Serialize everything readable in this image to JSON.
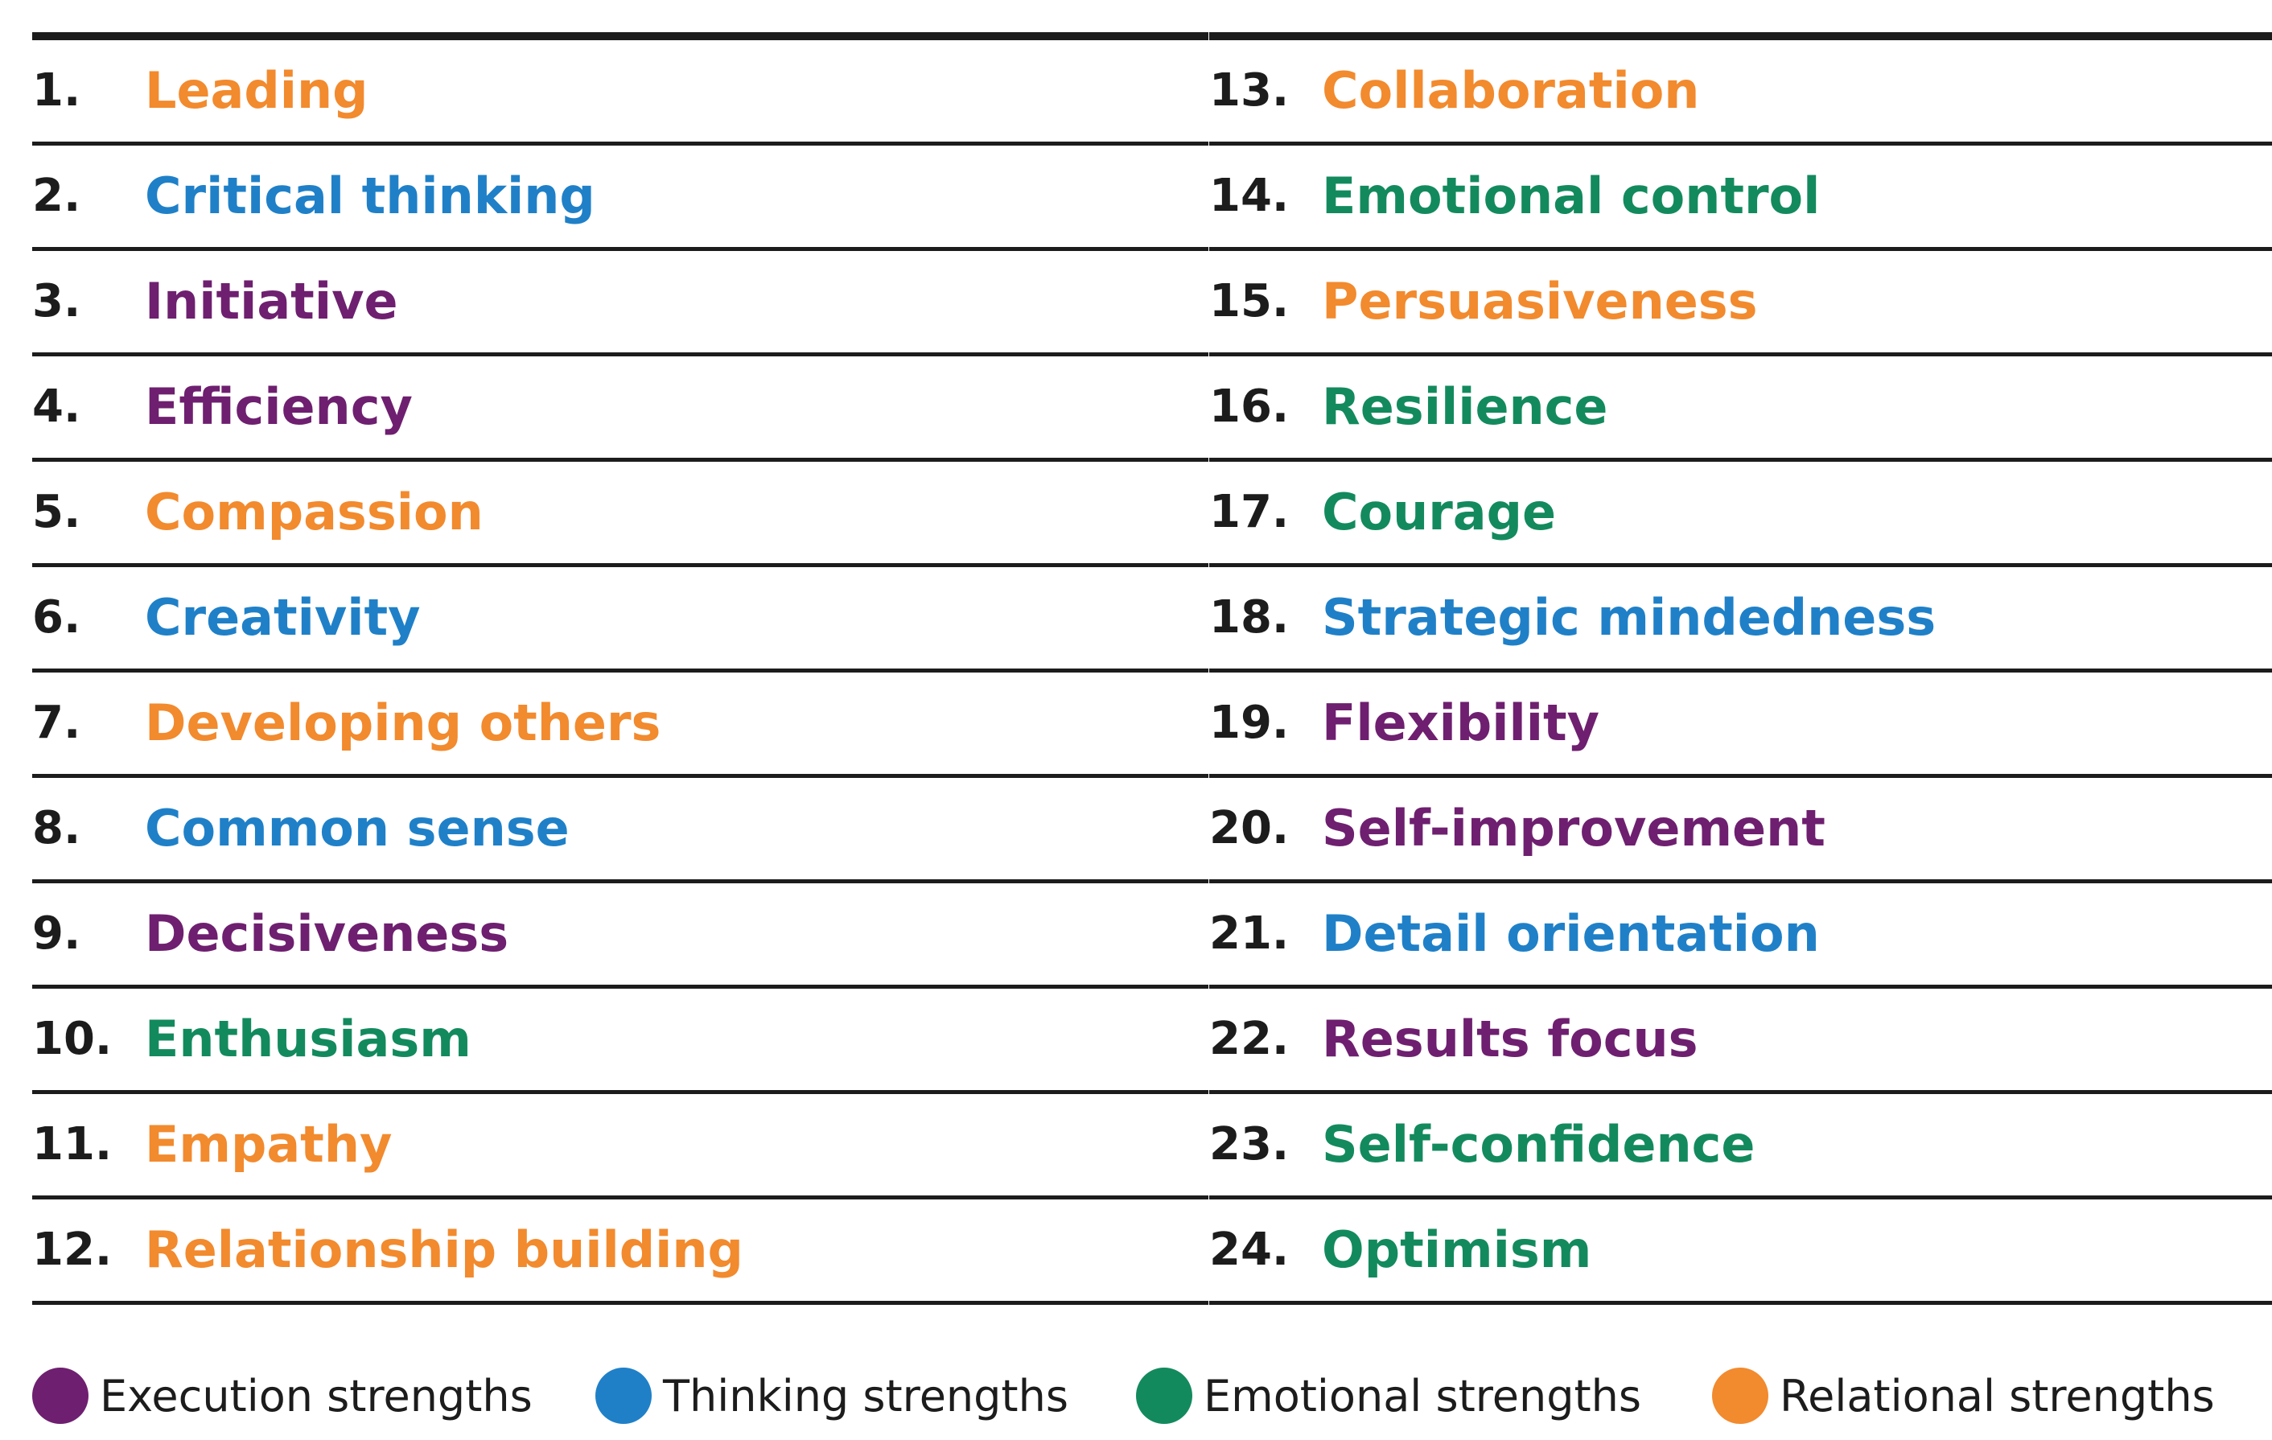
{
  "categories": {
    "execution": {
      "label": "Execution strengths",
      "color": "#6e1f6f"
    },
    "thinking": {
      "label": "Thinking strengths",
      "color": "#1f80c8"
    },
    "emotional": {
      "label": "Emotional strengths",
      "color": "#138a5e"
    },
    "relational": {
      "label": "Relational strengths",
      "color": "#f28a2e"
    }
  },
  "left_column": [
    {
      "number": "1.",
      "label": "Leading",
      "category": "relational"
    },
    {
      "number": "2.",
      "label": "Critical thinking",
      "category": "thinking"
    },
    {
      "number": "3.",
      "label": "Initiative",
      "category": "execution"
    },
    {
      "number": "4.",
      "label": "Efficiency",
      "category": "execution"
    },
    {
      "number": "5.",
      "label": "Compassion",
      "category": "relational"
    },
    {
      "number": "6.",
      "label": "Creativity",
      "category": "thinking"
    },
    {
      "number": "7.",
      "label": "Developing others",
      "category": "relational"
    },
    {
      "number": "8.",
      "label": "Common sense",
      "category": "thinking"
    },
    {
      "number": "9.",
      "label": "Decisiveness",
      "category": "execution"
    },
    {
      "number": "10.",
      "label": "Enthusiasm",
      "category": "emotional"
    },
    {
      "number": "11.",
      "label": "Empathy",
      "category": "relational"
    },
    {
      "number": "12.",
      "label": "Relationship building",
      "category": "relational"
    }
  ],
  "right_column": [
    {
      "number": "13.",
      "label": "Collaboration",
      "category": "relational"
    },
    {
      "number": "14.",
      "label": "Emotional control",
      "category": "emotional"
    },
    {
      "number": "15.",
      "label": "Persuasiveness",
      "category": "relational"
    },
    {
      "number": "16.",
      "label": "Resilience",
      "category": "emotional"
    },
    {
      "number": "17.",
      "label": "Courage",
      "category": "emotional"
    },
    {
      "number": "18.",
      "label": "Strategic mindedness",
      "category": "thinking"
    },
    {
      "number": "19.",
      "label": "Flexibility",
      "category": "execution"
    },
    {
      "number": "20.",
      "label": "Self-improvement",
      "category": "execution"
    },
    {
      "number": "21.",
      "label": "Detail orientation",
      "category": "thinking"
    },
    {
      "number": "22.",
      "label": "Results focus",
      "category": "execution"
    },
    {
      "number": "23.",
      "label": "Self-confidence",
      "category": "emotional"
    },
    {
      "number": "24.",
      "label": "Optimism",
      "category": "emotional"
    }
  ],
  "legend": [
    "execution",
    "thinking",
    "emotional",
    "relational"
  ]
}
